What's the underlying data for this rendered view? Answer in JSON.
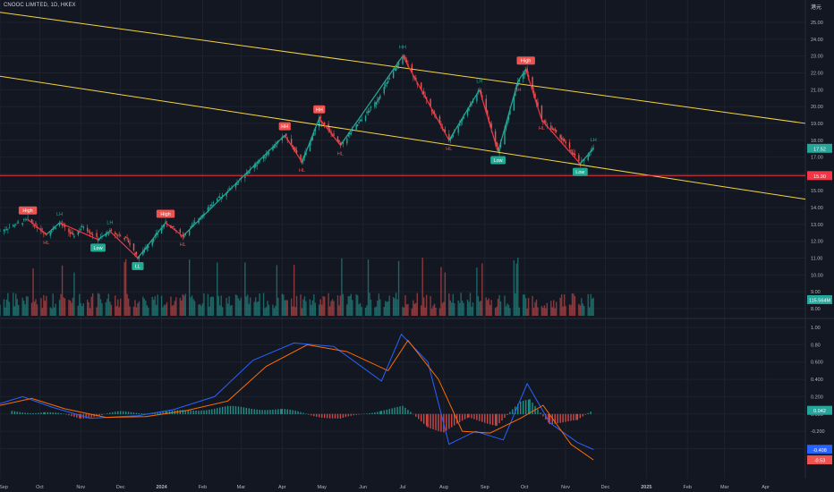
{
  "header": {
    "symbol_line": "CNOOC LIMITED, 1D, HKEX",
    "currency": "港元"
  },
  "price_axis": {
    "ticks": [
      "25.00",
      "24.00",
      "23.00",
      "22.00",
      "21.00",
      "20.00",
      "19.00",
      "18.00",
      "17.00",
      "16.00",
      "15.00",
      "14.00",
      "13.00",
      "12.00",
      "11.00",
      "10.00",
      "9.00",
      "8.00"
    ],
    "last_price_tag": "17.52",
    "line_price_tag": "15.90",
    "volume_tag": "115.564M"
  },
  "oscillator_axis": {
    "ticks": [
      "1.00",
      "0.80",
      "0.600",
      "0.400",
      "0.200",
      "0.000",
      "-0.200",
      "-0.400"
    ],
    "histogram_tag": "0.042",
    "macd_tag": "-0.408",
    "signal_tag": "-0.53"
  },
  "time_axis": {
    "labels": [
      "Sep",
      "Oct",
      "Nov",
      "Dec",
      "2024",
      "Feb",
      "Mar",
      "Apr",
      "May",
      "Jun",
      "Jul",
      "Aug",
      "Sep",
      "Oct",
      "Nov",
      "Dec",
      "2025",
      "Feb",
      "Mar",
      "Apr"
    ]
  },
  "colors": {
    "background": "#131722",
    "up": "#26a69a",
    "down": "#ef5350",
    "trendline": "#f5d442",
    "horizontal_line": "#f23645",
    "macd": "#2962ff",
    "signal": "#ff6d00",
    "zigzag_up": "#22ab94",
    "zigzag_down": "#f23645"
  },
  "chart_data": [
    {
      "type": "candlestick",
      "series": [
        {
          "points": [
            {
              "date": "2023-09-01",
              "close": 12.6
            },
            {
              "date": "2023-09-22",
              "close": 13.3
            },
            {
              "date": "2023-10-06",
              "close": 12.4
            },
            {
              "date": "2023-10-16",
              "close": 13.1
            },
            {
              "date": "2023-10-26",
              "close": 12.3
            },
            {
              "date": "2023-11-03",
              "close": 12.9
            },
            {
              "date": "2023-11-14",
              "close": 12.1
            },
            {
              "date": "2023-11-23",
              "close": 12.6
            },
            {
              "date": "2023-12-06",
              "close": 12.1
            },
            {
              "date": "2023-12-14",
              "close": 11.0
            },
            {
              "date": "2024-01-04",
              "close": 13.1
            },
            {
              "date": "2024-01-17",
              "close": 12.3
            },
            {
              "date": "2024-02-05",
              "close": 14.0
            },
            {
              "date": "2024-03-01",
              "close": 15.7
            },
            {
              "date": "2024-04-03",
              "close": 18.3
            },
            {
              "date": "2024-04-16",
              "close": 16.7
            },
            {
              "date": "2024-04-29",
              "close": 19.3
            },
            {
              "date": "2024-05-15",
              "close": 17.7
            },
            {
              "date": "2024-06-10",
              "close": 20.2
            },
            {
              "date": "2024-07-01",
              "close": 23.0
            },
            {
              "date": "2024-07-25",
              "close": 19.5
            },
            {
              "date": "2024-08-05",
              "close": 18.0
            },
            {
              "date": "2024-08-28",
              "close": 21.0
            },
            {
              "date": "2024-09-11",
              "close": 17.3
            },
            {
              "date": "2024-09-26",
              "close": 21.5
            },
            {
              "date": "2024-10-02",
              "close": 22.2
            },
            {
              "date": "2024-10-14",
              "close": 19.2
            },
            {
              "date": "2024-10-28",
              "close": 18.2
            },
            {
              "date": "2024-11-12",
              "close": 16.6
            },
            {
              "date": "2024-11-22",
              "close": 17.52
            }
          ]
        }
      ],
      "pivot_labels": [
        {
          "label": "High",
          "date": "2023-09-22",
          "price": 13.3
        },
        {
          "label": "HL",
          "date": "2023-10-06",
          "price": 12.4
        },
        {
          "label": "LH",
          "date": "2023-10-16",
          "price": 13.1
        },
        {
          "label": "Low",
          "date": "2023-11-14",
          "price": 12.1
        },
        {
          "label": "LH",
          "date": "2023-11-23",
          "price": 12.6
        },
        {
          "label": "LL",
          "date": "2023-12-14",
          "price": 11.0
        },
        {
          "label": "High",
          "date": "2024-01-04",
          "price": 13.1
        },
        {
          "label": "HL",
          "date": "2024-01-17",
          "price": 12.3
        },
        {
          "label": "HH",
          "date": "2024-04-03",
          "price": 18.3
        },
        {
          "label": "HL",
          "date": "2024-04-16",
          "price": 16.7
        },
        {
          "label": "HH",
          "date": "2024-04-29",
          "price": 19.3
        },
        {
          "label": "HL",
          "date": "2024-05-15",
          "price": 17.7
        },
        {
          "label": "HH",
          "date": "2024-07-01",
          "price": 23.0
        },
        {
          "label": "HL",
          "date": "2024-08-05",
          "price": 18.0
        },
        {
          "label": "LH",
          "date": "2024-08-28",
          "price": 21.0
        },
        {
          "label": "Low",
          "date": "2024-09-11",
          "price": 17.3
        },
        {
          "label": "LH",
          "date": "2024-09-26",
          "price": 21.5
        },
        {
          "label": "High",
          "date": "2024-10-02",
          "price": 22.2
        },
        {
          "label": "HL",
          "date": "2024-10-14",
          "price": 19.2
        },
        {
          "label": "Low",
          "date": "2024-11-12",
          "price": 16.6
        },
        {
          "label": "LH",
          "date": "2024-11-22",
          "price": 17.52
        }
      ],
      "trendlines": [
        {
          "from": {
            "date": "2023-09-01",
            "price": 25.6
          },
          "to": {
            "date": "2025-05-01",
            "price": 19.0
          }
        },
        {
          "from": {
            "date": "2023-09-01",
            "price": 21.8
          },
          "to": {
            "date": "2025-05-01",
            "price": 14.5
          }
        }
      ],
      "horizontal_lines": [
        15.9
      ],
      "ylim": [
        8.0,
        25.0
      ],
      "xlim": [
        "2023-09-01",
        "2025-05-01"
      ]
    },
    {
      "type": "line",
      "ylim": [
        -0.55,
        1.0
      ],
      "series": [
        {
          "values": [
            {
              "date": "2023-09-01",
              "value": 0.12
            },
            {
              "date": "2023-09-18",
              "value": 0.2
            },
            {
              "date": "2023-10-10",
              "value": 0.08
            },
            {
              "date": "2023-11-08",
              "value": -0.05
            },
            {
              "date": "2023-12-14",
              "value": -0.02
            },
            {
              "date": "2024-01-10",
              "value": 0.05
            },
            {
              "date": "2024-02-10",
              "value": 0.2
            },
            {
              "date": "2024-03-10",
              "value": 0.62
            },
            {
              "date": "2024-04-10",
              "value": 0.82
            },
            {
              "date": "2024-05-10",
              "value": 0.78
            },
            {
              "date": "2024-06-15",
              "value": 0.38
            },
            {
              "date": "2024-06-30",
              "value": 0.92
            },
            {
              "date": "2024-07-20",
              "value": 0.6
            },
            {
              "date": "2024-08-05",
              "value": -0.35
            },
            {
              "date": "2024-08-25",
              "value": -0.2
            },
            {
              "date": "2024-09-15",
              "value": -0.3
            },
            {
              "date": "2024-10-03",
              "value": 0.35
            },
            {
              "date": "2024-10-20",
              "value": -0.1
            },
            {
              "date": "2024-11-10",
              "value": -0.33
            },
            {
              "date": "2024-11-22",
              "value": -0.41
            }
          ]
        },
        {
          "values": [
            {
              "date": "2023-09-01",
              "value": 0.1
            },
            {
              "date": "2023-09-25",
              "value": 0.18
            },
            {
              "date": "2023-10-20",
              "value": 0.06
            },
            {
              "date": "2023-11-20",
              "value": -0.04
            },
            {
              "date": "2023-12-20",
              "value": -0.03
            },
            {
              "date": "2024-01-20",
              "value": 0.04
            },
            {
              "date": "2024-02-20",
              "value": 0.15
            },
            {
              "date": "2024-03-20",
              "value": 0.55
            },
            {
              "date": "2024-04-20",
              "value": 0.8
            },
            {
              "date": "2024-05-20",
              "value": 0.72
            },
            {
              "date": "2024-06-20",
              "value": 0.5
            },
            {
              "date": "2024-07-05",
              "value": 0.85
            },
            {
              "date": "2024-07-28",
              "value": 0.4
            },
            {
              "date": "2024-08-15",
              "value": -0.2
            },
            {
              "date": "2024-09-05",
              "value": -0.22
            },
            {
              "date": "2024-09-28",
              "value": -0.05
            },
            {
              "date": "2024-10-15",
              "value": 0.1
            },
            {
              "date": "2024-11-05",
              "value": -0.35
            },
            {
              "date": "2024-11-22",
              "value": -0.53
            }
          ]
        }
      ],
      "histogram": [
        {
          "date": "2023-09-10",
          "value": 0.03
        },
        {
          "date": "2023-10-05",
          "value": 0.02
        },
        {
          "date": "2023-11-01",
          "value": -0.04
        },
        {
          "date": "2023-12-01",
          "value": 0.02
        },
        {
          "date": "2024-01-05",
          "value": 0.02
        },
        {
          "date": "2024-02-20",
          "value": 0.08
        },
        {
          "date": "2024-04-01",
          "value": 0.05
        },
        {
          "date": "2024-05-15",
          "value": -0.06
        },
        {
          "date": "2024-06-15",
          "value": 0.05
        },
        {
          "date": "2024-07-01",
          "value": 0.08
        },
        {
          "date": "2024-07-20",
          "value": -0.14
        },
        {
          "date": "2024-08-01",
          "value": -0.2
        },
        {
          "date": "2024-08-20",
          "value": -0.05
        },
        {
          "date": "2024-09-10",
          "value": -0.12
        },
        {
          "date": "2024-09-28",
          "value": 0.13
        },
        {
          "date": "2024-10-05",
          "value": 0.16
        },
        {
          "date": "2024-10-20",
          "value": -0.1
        },
        {
          "date": "2024-11-10",
          "value": -0.08
        },
        {
          "date": "2024-11-22",
          "value": 0.042
        }
      ]
    }
  ]
}
